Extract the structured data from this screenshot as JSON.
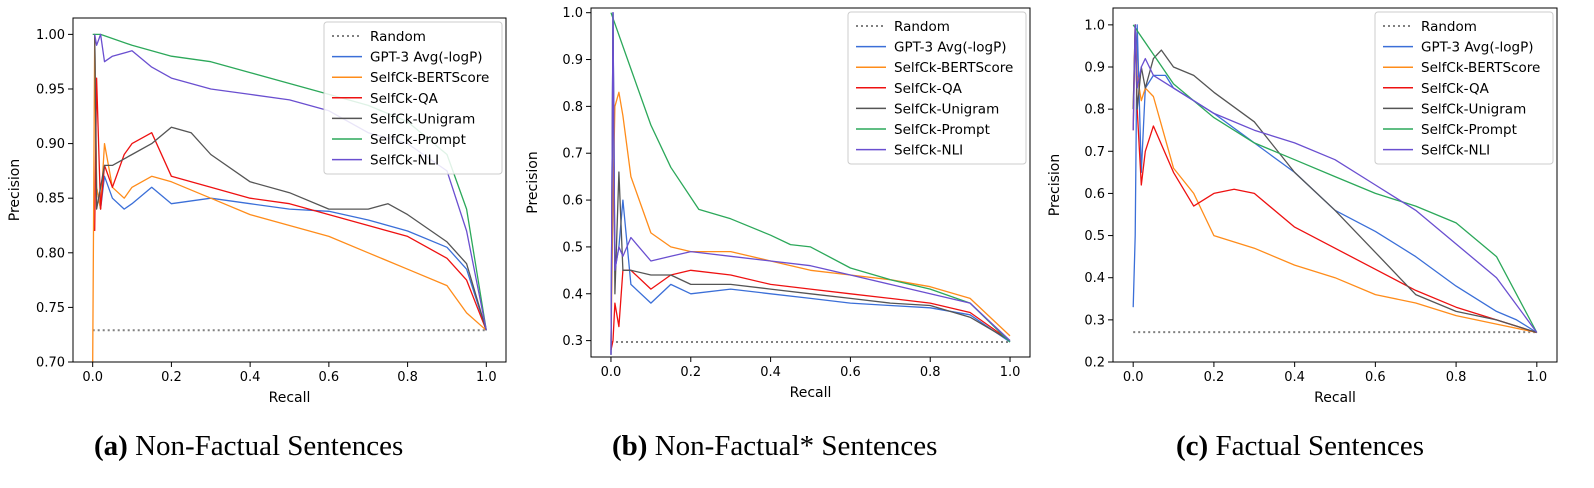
{
  "figure": {
    "captions": [
      {
        "tag": "(a)",
        "text": "Non-Factual Sentences"
      },
      {
        "tag": "(b)",
        "text": "Non-Factual* Sentences"
      },
      {
        "tag": "(c)",
        "text": "Factual Sentences"
      }
    ]
  },
  "colors": {
    "Random": "#808080",
    "GPT-3 Avg(-logP)": "#3b6fd8",
    "SelfCk-BERTScore": "#ff8c1a",
    "SelfCk-QA": "#ee1111",
    "SelfCk-Unigram": "#555555",
    "SelfCk-Prompt": "#2ca85a",
    "SelfCk-NLI": "#6a4fd0"
  },
  "chart_data": [
    {
      "type": "line",
      "xlabel": "Recall",
      "ylabel": "Precision",
      "xlim": [
        -0.05,
        1.05
      ],
      "ylim": [
        0.7,
        1.015
      ],
      "xticks": [
        "0.0",
        "0.2",
        "0.4",
        "0.6",
        "0.8",
        "1.0"
      ],
      "yticks": [
        "0.70",
        "0.75",
        "0.80",
        "0.85",
        "0.90",
        "0.95",
        "1.00"
      ],
      "legend": "top-right",
      "grid": false,
      "legend_entries": [
        "Random",
        "GPT-3 Avg(-logP)",
        "SelfCk-BERTScore",
        "SelfCk-QA",
        "SelfCk-Unigram",
        "SelfCk-Prompt",
        "SelfCk-NLI"
      ],
      "series": [
        {
          "name": "Random",
          "dashed": true,
          "x": [
            0,
            1
          ],
          "y": [
            0.729,
            0.729
          ]
        },
        {
          "name": "GPT-3 Avg(-logP)",
          "x": [
            0.005,
            0.01,
            0.02,
            0.03,
            0.05,
            0.08,
            0.1,
            0.15,
            0.2,
            0.3,
            0.4,
            0.5,
            0.6,
            0.7,
            0.8,
            0.9,
            0.95,
            1.0
          ],
          "y": [
            1.0,
            0.86,
            0.84,
            0.87,
            0.85,
            0.84,
            0.845,
            0.86,
            0.845,
            0.85,
            0.845,
            0.84,
            0.838,
            0.83,
            0.82,
            0.805,
            0.785,
            0.729
          ]
        },
        {
          "name": "SelfCk-BERTScore",
          "x": [
            0.0,
            0.005,
            0.01,
            0.02,
            0.03,
            0.05,
            0.08,
            0.1,
            0.15,
            0.2,
            0.3,
            0.4,
            0.5,
            0.6,
            0.7,
            0.8,
            0.9,
            0.95,
            1.0
          ],
          "y": [
            0.7,
            1.0,
            0.86,
            0.84,
            0.9,
            0.86,
            0.85,
            0.86,
            0.87,
            0.865,
            0.85,
            0.835,
            0.825,
            0.815,
            0.8,
            0.785,
            0.77,
            0.745,
            0.729
          ]
        },
        {
          "name": "SelfCk-QA",
          "x": [
            0.005,
            0.01,
            0.02,
            0.03,
            0.05,
            0.08,
            0.1,
            0.15,
            0.2,
            0.3,
            0.4,
            0.5,
            0.6,
            0.7,
            0.8,
            0.9,
            0.95,
            1.0
          ],
          "y": [
            0.82,
            0.96,
            0.84,
            0.88,
            0.86,
            0.89,
            0.9,
            0.91,
            0.87,
            0.86,
            0.85,
            0.845,
            0.835,
            0.825,
            0.815,
            0.795,
            0.775,
            0.729
          ]
        },
        {
          "name": "SelfCk-Unigram",
          "x": [
            0.005,
            0.01,
            0.02,
            0.03,
            0.05,
            0.1,
            0.15,
            0.2,
            0.25,
            0.3,
            0.4,
            0.5,
            0.6,
            0.7,
            0.75,
            0.8,
            0.9,
            0.95,
            1.0
          ],
          "y": [
            1.0,
            0.84,
            0.86,
            0.88,
            0.88,
            0.89,
            0.9,
            0.915,
            0.91,
            0.89,
            0.865,
            0.855,
            0.84,
            0.84,
            0.845,
            0.835,
            0.81,
            0.79,
            0.729
          ]
        },
        {
          "name": "SelfCk-Prompt",
          "x": [
            0.0,
            0.02,
            0.1,
            0.2,
            0.3,
            0.4,
            0.5,
            0.6,
            0.7,
            0.8,
            0.9,
            0.95,
            1.0
          ],
          "y": [
            1.0,
            1.0,
            0.99,
            0.98,
            0.975,
            0.965,
            0.955,
            0.945,
            0.935,
            0.92,
            0.89,
            0.84,
            0.729
          ]
        },
        {
          "name": "SelfCk-NLI",
          "x": [
            0.005,
            0.01,
            0.02,
            0.03,
            0.05,
            0.1,
            0.15,
            0.2,
            0.3,
            0.4,
            0.5,
            0.6,
            0.7,
            0.8,
            0.9,
            0.95,
            1.0
          ],
          "y": [
            1.0,
            0.99,
            1.0,
            0.975,
            0.98,
            0.985,
            0.97,
            0.96,
            0.95,
            0.945,
            0.94,
            0.93,
            0.91,
            0.9,
            0.875,
            0.82,
            0.729
          ]
        }
      ]
    },
    {
      "type": "line",
      "xlabel": "Recall",
      "ylabel": "Precision",
      "xlim": [
        -0.05,
        1.05
      ],
      "ylim": [
        0.265,
        1.01
      ],
      "xticks": [
        "0.0",
        "0.2",
        "0.4",
        "0.6",
        "0.8",
        "1.0"
      ],
      "yticks": [
        "0.3",
        "0.4",
        "0.5",
        "0.6",
        "0.7",
        "0.8",
        "0.9",
        "1.0"
      ],
      "legend": "top-right",
      "grid": false,
      "legend_entries": [
        "Random",
        "GPT-3 Avg(-logP)",
        "SelfCk-BERTScore",
        "SelfCk-QA",
        "SelfCk-Unigram",
        "SelfCk-Prompt",
        "SelfCk-NLI"
      ],
      "series": [
        {
          "name": "Random",
          "dashed": true,
          "x": [
            0,
            1
          ],
          "y": [
            0.297,
            0.297
          ]
        },
        {
          "name": "GPT-3 Avg(-logP)",
          "x": [
            0.0,
            0.005,
            0.01,
            0.02,
            0.03,
            0.05,
            0.1,
            0.15,
            0.2,
            0.3,
            0.4,
            0.5,
            0.6,
            0.7,
            0.8,
            0.9,
            1.0
          ],
          "y": [
            0.27,
            1.0,
            0.45,
            0.5,
            0.6,
            0.42,
            0.38,
            0.42,
            0.4,
            0.41,
            0.4,
            0.39,
            0.38,
            0.375,
            0.37,
            0.355,
            0.297
          ]
        },
        {
          "name": "SelfCk-BERTScore",
          "x": [
            0.0,
            0.005,
            0.01,
            0.02,
            0.03,
            0.05,
            0.1,
            0.15,
            0.2,
            0.3,
            0.4,
            0.5,
            0.6,
            0.7,
            0.8,
            0.9,
            1.0
          ],
          "y": [
            0.3,
            0.6,
            0.8,
            0.83,
            0.78,
            0.65,
            0.53,
            0.5,
            0.49,
            0.49,
            0.47,
            0.45,
            0.44,
            0.43,
            0.415,
            0.39,
            0.31
          ]
        },
        {
          "name": "SelfCk-QA",
          "x": [
            0.0,
            0.005,
            0.01,
            0.02,
            0.03,
            0.05,
            0.1,
            0.15,
            0.2,
            0.3,
            0.4,
            0.5,
            0.6,
            0.7,
            0.8,
            0.9,
            1.0
          ],
          "y": [
            0.28,
            0.3,
            0.38,
            0.33,
            0.45,
            0.45,
            0.41,
            0.44,
            0.45,
            0.44,
            0.42,
            0.41,
            0.4,
            0.39,
            0.38,
            0.36,
            0.3
          ]
        },
        {
          "name": "SelfCk-Unigram",
          "x": [
            0.0,
            0.005,
            0.01,
            0.02,
            0.03,
            0.05,
            0.1,
            0.15,
            0.2,
            0.3,
            0.4,
            0.5,
            0.6,
            0.7,
            0.8,
            0.9,
            1.0
          ],
          "y": [
            0.27,
            1.0,
            0.4,
            0.66,
            0.45,
            0.45,
            0.44,
            0.44,
            0.42,
            0.42,
            0.41,
            0.4,
            0.39,
            0.38,
            0.375,
            0.35,
            0.3
          ]
        },
        {
          "name": "SelfCk-Prompt",
          "x": [
            0.0,
            0.05,
            0.1,
            0.15,
            0.22,
            0.3,
            0.4,
            0.45,
            0.5,
            0.6,
            0.7,
            0.8,
            0.9,
            1.0
          ],
          "y": [
            1.0,
            0.88,
            0.76,
            0.67,
            0.58,
            0.56,
            0.525,
            0.505,
            0.5,
            0.455,
            0.43,
            0.41,
            0.38,
            0.297
          ]
        },
        {
          "name": "SelfCk-NLI",
          "x": [
            0.0,
            0.005,
            0.01,
            0.02,
            0.03,
            0.05,
            0.1,
            0.15,
            0.2,
            0.3,
            0.4,
            0.5,
            0.6,
            0.7,
            0.8,
            0.9,
            1.0
          ],
          "y": [
            0.27,
            1.0,
            0.45,
            0.5,
            0.48,
            0.52,
            0.47,
            0.48,
            0.49,
            0.48,
            0.47,
            0.46,
            0.44,
            0.42,
            0.4,
            0.38,
            0.3
          ]
        }
      ]
    },
    {
      "type": "line",
      "xlabel": "Recall",
      "ylabel": "Precision",
      "xlim": [
        -0.05,
        1.05
      ],
      "ylim": [
        0.2,
        1.04
      ],
      "xticks": [
        "0.0",
        "0.2",
        "0.4",
        "0.6",
        "0.8",
        "1.0"
      ],
      "yticks": [
        "0.2",
        "0.3",
        "0.4",
        "0.5",
        "0.6",
        "0.7",
        "0.8",
        "0.9",
        "1.0"
      ],
      "legend": "top-right",
      "grid": false,
      "legend_entries": [
        "Random",
        "GPT-3 Avg(-logP)",
        "SelfCk-BERTScore",
        "SelfCk-QA",
        "SelfCk-Unigram",
        "SelfCk-Prompt",
        "SelfCk-NLI"
      ],
      "series": [
        {
          "name": "Random",
          "dashed": true,
          "x": [
            0,
            1
          ],
          "y": [
            0.271,
            0.271
          ]
        },
        {
          "name": "GPT-3 Avg(-logP)",
          "x": [
            0.0,
            0.005,
            0.01,
            0.02,
            0.03,
            0.05,
            0.08,
            0.1,
            0.15,
            0.2,
            0.3,
            0.4,
            0.5,
            0.6,
            0.7,
            0.8,
            0.9,
            0.95,
            1.0
          ],
          "y": [
            0.33,
            0.5,
            1.0,
            0.65,
            0.85,
            0.88,
            0.88,
            0.85,
            0.82,
            0.79,
            0.72,
            0.65,
            0.56,
            0.51,
            0.45,
            0.38,
            0.32,
            0.3,
            0.27
          ]
        },
        {
          "name": "SelfCk-BERTScore",
          "x": [
            0.0,
            0.005,
            0.01,
            0.02,
            0.03,
            0.05,
            0.1,
            0.15,
            0.2,
            0.3,
            0.4,
            0.5,
            0.6,
            0.7,
            0.8,
            0.9,
            1.0
          ],
          "y": [
            0.8,
            1.0,
            0.88,
            0.82,
            0.85,
            0.83,
            0.66,
            0.6,
            0.5,
            0.47,
            0.43,
            0.4,
            0.36,
            0.34,
            0.31,
            0.29,
            0.27
          ]
        },
        {
          "name": "SelfCk-QA",
          "x": [
            0.0,
            0.005,
            0.01,
            0.02,
            0.03,
            0.05,
            0.1,
            0.15,
            0.2,
            0.25,
            0.3,
            0.4,
            0.5,
            0.6,
            0.7,
            0.8,
            0.9,
            1.0
          ],
          "y": [
            0.75,
            1.0,
            0.8,
            0.62,
            0.7,
            0.76,
            0.65,
            0.57,
            0.6,
            0.61,
            0.6,
            0.52,
            0.47,
            0.42,
            0.37,
            0.33,
            0.3,
            0.27
          ]
        },
        {
          "name": "SelfCk-Unigram",
          "x": [
            0.0,
            0.005,
            0.01,
            0.02,
            0.03,
            0.05,
            0.07,
            0.1,
            0.15,
            0.2,
            0.3,
            0.4,
            0.5,
            0.6,
            0.7,
            0.8,
            0.9,
            1.0
          ],
          "y": [
            0.8,
            1.0,
            0.8,
            0.9,
            0.85,
            0.92,
            0.94,
            0.9,
            0.88,
            0.84,
            0.77,
            0.65,
            0.56,
            0.46,
            0.36,
            0.32,
            0.3,
            0.27
          ]
        },
        {
          "name": "SelfCk-Prompt",
          "x": [
            0.0,
            0.05,
            0.1,
            0.2,
            0.3,
            0.4,
            0.5,
            0.6,
            0.7,
            0.8,
            0.9,
            1.0
          ],
          "y": [
            1.0,
            0.93,
            0.86,
            0.78,
            0.72,
            0.68,
            0.64,
            0.6,
            0.57,
            0.53,
            0.45,
            0.27
          ]
        },
        {
          "name": "SelfCk-NLI",
          "x": [
            0.0,
            0.005,
            0.01,
            0.02,
            0.03,
            0.05,
            0.1,
            0.15,
            0.2,
            0.3,
            0.4,
            0.5,
            0.6,
            0.7,
            0.8,
            0.9,
            1.0
          ],
          "y": [
            0.75,
            1.0,
            0.85,
            0.9,
            0.92,
            0.88,
            0.85,
            0.82,
            0.79,
            0.75,
            0.72,
            0.68,
            0.62,
            0.56,
            0.48,
            0.4,
            0.27
          ]
        }
      ]
    }
  ]
}
